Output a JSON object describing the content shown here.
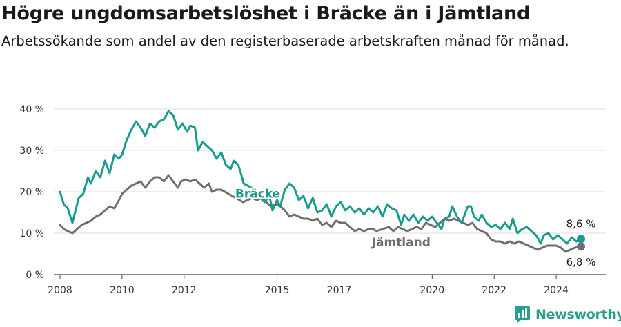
{
  "header": {
    "title": "Högre ungdomsarbetslöshet i Bräcke än i Jämtland",
    "subtitle": "Arbetssökande som andel av den registerbaserade arbetskraften månad för månad."
  },
  "brand": {
    "name": "Newsworthy",
    "icon": "newsworthy-logo-icon",
    "color": "#2a9d8f"
  },
  "colors": {
    "bracke": "#1a9b8f",
    "jamtland": "#6f6f6f",
    "grid": "#dddddd",
    "axis": "#444444"
  },
  "chart_data": {
    "type": "line",
    "title": "Högre ungdomsarbetslöshet i Bräcke än i Jämtland",
    "subtitle": "Arbetssökande som andel av den registerbaserade arbetskraften månad för månad.",
    "xlabel": "",
    "ylabel": "",
    "xlim": [
      2007.8,
      2025.6
    ],
    "ylim": [
      0,
      40
    ],
    "grid": true,
    "x_ticks": [
      2008,
      2010,
      2012,
      2015,
      2017,
      2020,
      2022,
      2024
    ],
    "x_tick_labels": [
      "2008",
      "2010",
      "2012",
      "2015",
      "2017",
      "2020",
      "2022",
      "2024"
    ],
    "y_ticks": [
      0,
      10,
      20,
      30,
      40
    ],
    "y_tick_labels": [
      "0 %",
      "10 %",
      "20 %",
      "30 %",
      "40 %"
    ],
    "series": [
      {
        "name": "Bräcke",
        "label": "Bräcke",
        "end_label": "8,6 %",
        "end_value": 8.6,
        "points": [
          [
            2008.0,
            20.0
          ],
          [
            2008.12,
            17.0
          ],
          [
            2008.25,
            16.0
          ],
          [
            2008.4,
            12.5
          ],
          [
            2008.5,
            15.5
          ],
          [
            2008.6,
            18.5
          ],
          [
            2008.75,
            19.5
          ],
          [
            2008.9,
            23.5
          ],
          [
            2009.0,
            22.0
          ],
          [
            2009.15,
            25.0
          ],
          [
            2009.3,
            23.5
          ],
          [
            2009.45,
            27.5
          ],
          [
            2009.6,
            24.5
          ],
          [
            2009.75,
            29.0
          ],
          [
            2009.9,
            28.0
          ],
          [
            2010.0,
            29.0
          ],
          [
            2010.15,
            32.5
          ],
          [
            2010.3,
            35.0
          ],
          [
            2010.45,
            37.0
          ],
          [
            2010.6,
            35.5
          ],
          [
            2010.75,
            33.5
          ],
          [
            2010.9,
            36.5
          ],
          [
            2011.05,
            35.5
          ],
          [
            2011.2,
            37.0
          ],
          [
            2011.35,
            37.5
          ],
          [
            2011.5,
            39.5
          ],
          [
            2011.65,
            38.5
          ],
          [
            2011.8,
            35.0
          ],
          [
            2011.95,
            36.5
          ],
          [
            2012.1,
            34.5
          ],
          [
            2012.2,
            36.0
          ],
          [
            2012.35,
            35.5
          ],
          [
            2012.45,
            30.0
          ],
          [
            2012.6,
            32.0
          ],
          [
            2012.75,
            31.0
          ],
          [
            2012.9,
            30.0
          ],
          [
            2013.05,
            28.0
          ],
          [
            2013.2,
            29.5
          ],
          [
            2013.35,
            26.5
          ],
          [
            2013.5,
            25.5
          ],
          [
            2013.6,
            27.5
          ],
          [
            2013.75,
            26.5
          ],
          [
            2013.85,
            24.0
          ],
          [
            2013.92,
            22.0
          ],
          [
            2014.3,
            20.5
          ],
          [
            2014.45,
            18.5
          ],
          [
            2014.6,
            17.5
          ],
          [
            2014.75,
            19.0
          ],
          [
            2014.85,
            15.5
          ],
          [
            2015.0,
            18.0
          ],
          [
            2015.1,
            16.5
          ],
          [
            2015.25,
            20.5
          ],
          [
            2015.4,
            22.0
          ],
          [
            2015.55,
            21.0
          ],
          [
            2015.7,
            18.0
          ],
          [
            2015.85,
            19.0
          ],
          [
            2016.0,
            16.0
          ],
          [
            2016.15,
            18.5
          ],
          [
            2016.3,
            15.0
          ],
          [
            2016.45,
            15.5
          ],
          [
            2016.6,
            17.0
          ],
          [
            2016.75,
            14.0
          ],
          [
            2016.9,
            16.5
          ],
          [
            2017.05,
            17.5
          ],
          [
            2017.2,
            15.5
          ],
          [
            2017.35,
            16.5
          ],
          [
            2017.5,
            15.0
          ],
          [
            2017.65,
            16.0
          ],
          [
            2017.8,
            14.5
          ],
          [
            2017.95,
            16.0
          ],
          [
            2018.1,
            15.0
          ],
          [
            2018.25,
            16.5
          ],
          [
            2018.4,
            14.0
          ],
          [
            2018.55,
            17.0
          ],
          [
            2018.7,
            16.0
          ],
          [
            2018.85,
            15.5
          ],
          [
            2019.0,
            12.0
          ],
          [
            2019.1,
            14.5
          ],
          [
            2019.25,
            13.0
          ],
          [
            2019.4,
            14.5
          ],
          [
            2019.55,
            12.5
          ],
          [
            2019.7,
            14.0
          ],
          [
            2019.85,
            13.0
          ],
          [
            2020.0,
            14.0
          ],
          [
            2020.15,
            12.5
          ],
          [
            2020.3,
            11.0
          ],
          [
            2020.4,
            13.5
          ],
          [
            2020.55,
            14.0
          ],
          [
            2020.65,
            16.5
          ],
          [
            2020.8,
            14.0
          ],
          [
            2020.95,
            12.5
          ],
          [
            2021.05,
            14.5
          ],
          [
            2021.15,
            16.5
          ],
          [
            2021.25,
            16.5
          ],
          [
            2021.35,
            14.0
          ],
          [
            2021.5,
            13.0
          ],
          [
            2021.6,
            14.5
          ],
          [
            2021.75,
            12.5
          ],
          [
            2021.9,
            11.5
          ],
          [
            2022.05,
            12.0
          ],
          [
            2022.2,
            11.0
          ],
          [
            2022.35,
            12.5
          ],
          [
            2022.5,
            11.0
          ],
          [
            2022.6,
            13.5
          ],
          [
            2022.75,
            10.0
          ],
          [
            2022.9,
            11.0
          ],
          [
            2023.05,
            11.5
          ],
          [
            2023.2,
            10.5
          ],
          [
            2023.35,
            9.5
          ],
          [
            2023.5,
            7.5
          ],
          [
            2023.6,
            9.5
          ],
          [
            2023.75,
            10.0
          ],
          [
            2023.9,
            8.5
          ],
          [
            2024.05,
            9.5
          ],
          [
            2024.2,
            8.5
          ],
          [
            2024.35,
            7.5
          ],
          [
            2024.5,
            9.0
          ],
          [
            2024.65,
            8.0
          ],
          [
            2024.8,
            8.6
          ]
        ]
      },
      {
        "name": "Jämtland",
        "label": "Jämtland",
        "end_label": "6,8 %",
        "end_value": 6.8,
        "points": [
          [
            2008.0,
            12.0
          ],
          [
            2008.12,
            11.0
          ],
          [
            2008.25,
            10.5
          ],
          [
            2008.4,
            10.0
          ],
          [
            2008.55,
            11.0
          ],
          [
            2008.7,
            12.0
          ],
          [
            2008.85,
            12.5
          ],
          [
            2009.0,
            13.0
          ],
          [
            2009.15,
            14.0
          ],
          [
            2009.3,
            14.5
          ],
          [
            2009.45,
            15.5
          ],
          [
            2009.6,
            16.5
          ],
          [
            2009.75,
            16.0
          ],
          [
            2009.9,
            18.0
          ],
          [
            2010.0,
            19.5
          ],
          [
            2010.15,
            20.5
          ],
          [
            2010.3,
            21.5
          ],
          [
            2010.45,
            22.0
          ],
          [
            2010.6,
            22.5
          ],
          [
            2010.75,
            21.0
          ],
          [
            2010.9,
            22.5
          ],
          [
            2011.05,
            23.5
          ],
          [
            2011.2,
            23.5
          ],
          [
            2011.35,
            22.5
          ],
          [
            2011.5,
            24.0
          ],
          [
            2011.65,
            22.5
          ],
          [
            2011.8,
            21.0
          ],
          [
            2011.9,
            22.5
          ],
          [
            2012.05,
            23.0
          ],
          [
            2012.2,
            22.5
          ],
          [
            2012.35,
            23.0
          ],
          [
            2012.5,
            22.0
          ],
          [
            2012.65,
            21.0
          ],
          [
            2012.8,
            22.0
          ],
          [
            2012.9,
            20.0
          ],
          [
            2013.05,
            20.5
          ],
          [
            2013.2,
            20.5
          ],
          [
            2013.9,
            17.5
          ],
          [
            2014.05,
            18.0
          ],
          [
            2014.2,
            18.5
          ],
          [
            2014.35,
            18.0
          ],
          [
            2014.5,
            18.5
          ],
          [
            2014.65,
            17.5
          ],
          [
            2014.8,
            16.5
          ],
          [
            2014.95,
            17.0
          ],
          [
            2015.1,
            16.5
          ],
          [
            2015.25,
            15.5
          ],
          [
            2015.4,
            14.0
          ],
          [
            2015.55,
            14.5
          ],
          [
            2015.7,
            14.0
          ],
          [
            2015.85,
            13.5
          ],
          [
            2016.0,
            13.5
          ],
          [
            2016.15,
            13.0
          ],
          [
            2016.3,
            13.5
          ],
          [
            2016.45,
            12.0
          ],
          [
            2016.6,
            12.5
          ],
          [
            2016.75,
            11.5
          ],
          [
            2016.9,
            13.0
          ],
          [
            2017.05,
            12.5
          ],
          [
            2017.2,
            12.5
          ],
          [
            2017.35,
            11.5
          ],
          [
            2017.5,
            10.5
          ],
          [
            2017.65,
            11.0
          ],
          [
            2017.8,
            10.5
          ],
          [
            2017.95,
            11.0
          ],
          [
            2018.1,
            11.0
          ],
          [
            2018.2,
            10.5
          ],
          [
            2018.6,
            11.5
          ],
          [
            2018.75,
            10.5
          ],
          [
            2018.9,
            11.5
          ],
          [
            2019.05,
            11.0
          ],
          [
            2019.2,
            10.5
          ],
          [
            2019.35,
            11.0
          ],
          [
            2019.5,
            11.5
          ],
          [
            2019.65,
            11.0
          ],
          [
            2019.8,
            12.5
          ],
          [
            2019.95,
            12.0
          ],
          [
            2020.1,
            11.5
          ],
          [
            2020.25,
            12.5
          ],
          [
            2020.4,
            13.5
          ],
          [
            2020.55,
            13.0
          ],
          [
            2020.7,
            13.5
          ],
          [
            2020.85,
            13.0
          ],
          [
            2021.0,
            12.5
          ],
          [
            2021.15,
            12.0
          ],
          [
            2021.3,
            12.5
          ],
          [
            2021.45,
            11.0
          ],
          [
            2021.6,
            10.5
          ],
          [
            2021.75,
            10.0
          ],
          [
            2021.9,
            8.5
          ],
          [
            2022.05,
            8.0
          ],
          [
            2022.2,
            8.0
          ],
          [
            2022.35,
            7.5
          ],
          [
            2022.5,
            8.0
          ],
          [
            2022.65,
            7.5
          ],
          [
            2022.8,
            8.0
          ],
          [
            2022.95,
            7.5
          ],
          [
            2023.1,
            7.0
          ],
          [
            2023.25,
            6.5
          ],
          [
            2023.4,
            6.0
          ],
          [
            2023.55,
            6.5
          ],
          [
            2023.7,
            7.0
          ],
          [
            2023.85,
            7.0
          ],
          [
            2024.0,
            7.0
          ],
          [
            2024.15,
            6.5
          ],
          [
            2024.3,
            5.5
          ],
          [
            2024.45,
            6.0
          ],
          [
            2024.6,
            6.5
          ],
          [
            2024.8,
            6.8
          ]
        ]
      }
    ]
  }
}
